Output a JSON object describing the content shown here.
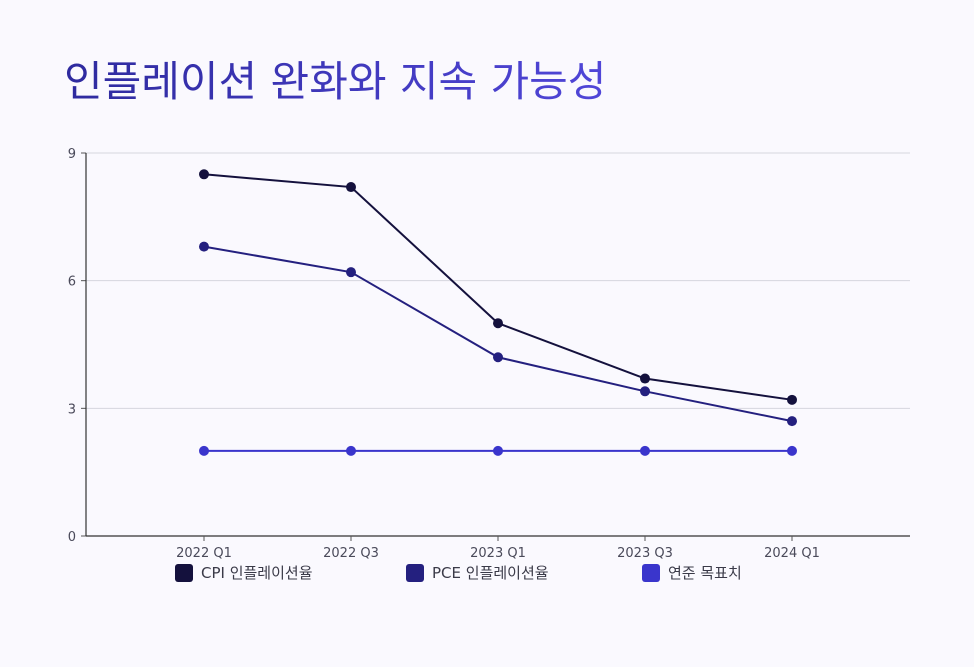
{
  "chart_data": {
    "type": "line",
    "title": "인플레이션 완화와 지속 가능성",
    "categories": [
      "2022 Q1",
      "2022 Q3",
      "2023 Q1",
      "2023 Q3",
      "2024 Q1"
    ],
    "ylim": [
      0,
      9
    ],
    "yticks": [
      0,
      3,
      6,
      9
    ],
    "grid": true,
    "legend_position": "bottom",
    "series": [
      {
        "name": "CPI 인플레이션율",
        "color": "#14113d",
        "values": [
          8.5,
          8.2,
          5.0,
          3.7,
          3.2
        ]
      },
      {
        "name": "PCE 인플레이션율",
        "color": "#24207f",
        "values": [
          6.8,
          6.2,
          4.2,
          3.4,
          2.7
        ]
      },
      {
        "name": "연준 목표치",
        "color": "#3a35cc",
        "values": [
          2.0,
          2.0,
          2.0,
          2.0,
          2.0
        ]
      }
    ]
  }
}
